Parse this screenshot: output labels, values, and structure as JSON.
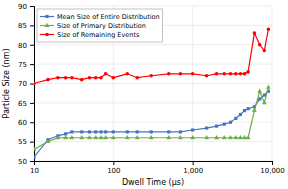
{
  "chart_data": {
    "type": "line",
    "xlabel": "Dwell Time (µs)",
    "ylabel": "Particle Size (nm)",
    "log": "x",
    "xlim": [
      10,
      10000
    ],
    "xticks": [
      10,
      100,
      {
        "value": 1000,
        "label": "1,000"
      },
      {
        "value": 10000,
        "label": "10,000"
      }
    ],
    "ylim": [
      50,
      90
    ],
    "yticks": [
      50,
      55,
      60,
      65,
      70,
      75,
      80,
      85,
      90
    ],
    "grid": true,
    "legend": "upper left",
    "x": [
      10,
      15,
      20,
      25,
      30,
      40,
      50,
      60,
      70,
      80,
      100,
      150,
      200,
      300,
      500,
      700,
      1000,
      1500,
      2000,
      2500,
      3000,
      3500,
      4000,
      4500,
      5000,
      6000,
      7000,
      8000,
      9000
    ],
    "series": [
      {
        "name": "Mean Size of Entire Distribution",
        "color": "#4472c4",
        "marker": "square",
        "values": [
          51,
          55.5,
          56.5,
          57,
          57.5,
          57.5,
          57.5,
          57.5,
          57.5,
          57.5,
          57.5,
          57.5,
          57.5,
          57.5,
          57.5,
          57.5,
          58,
          58.5,
          59,
          59.5,
          60,
          61,
          62,
          63,
          63.5,
          64,
          66,
          67,
          68
        ]
      },
      {
        "name": "Size of Primary Distribution",
        "color": "#70ad47",
        "marker": "triangle",
        "values": [
          53,
          55,
          56,
          56,
          56,
          56,
          56,
          56,
          56,
          56,
          56,
          56,
          56,
          56,
          56,
          56,
          56,
          56,
          56,
          56,
          56,
          56,
          56,
          56,
          56,
          63,
          68,
          65,
          69
        ]
      },
      {
        "name": "Size of Remaining Events",
        "color": "#ff0000",
        "marker": "circle",
        "values": [
          70,
          71,
          71.5,
          71.5,
          71.5,
          71,
          71.5,
          71.5,
          71.5,
          72.5,
          71.5,
          72.5,
          71.5,
          72,
          72.5,
          72.5,
          72.5,
          72,
          72.5,
          72.5,
          72.5,
          72.5,
          72.5,
          72.5,
          73,
          83,
          80,
          78.5,
          84
        ]
      }
    ]
  }
}
